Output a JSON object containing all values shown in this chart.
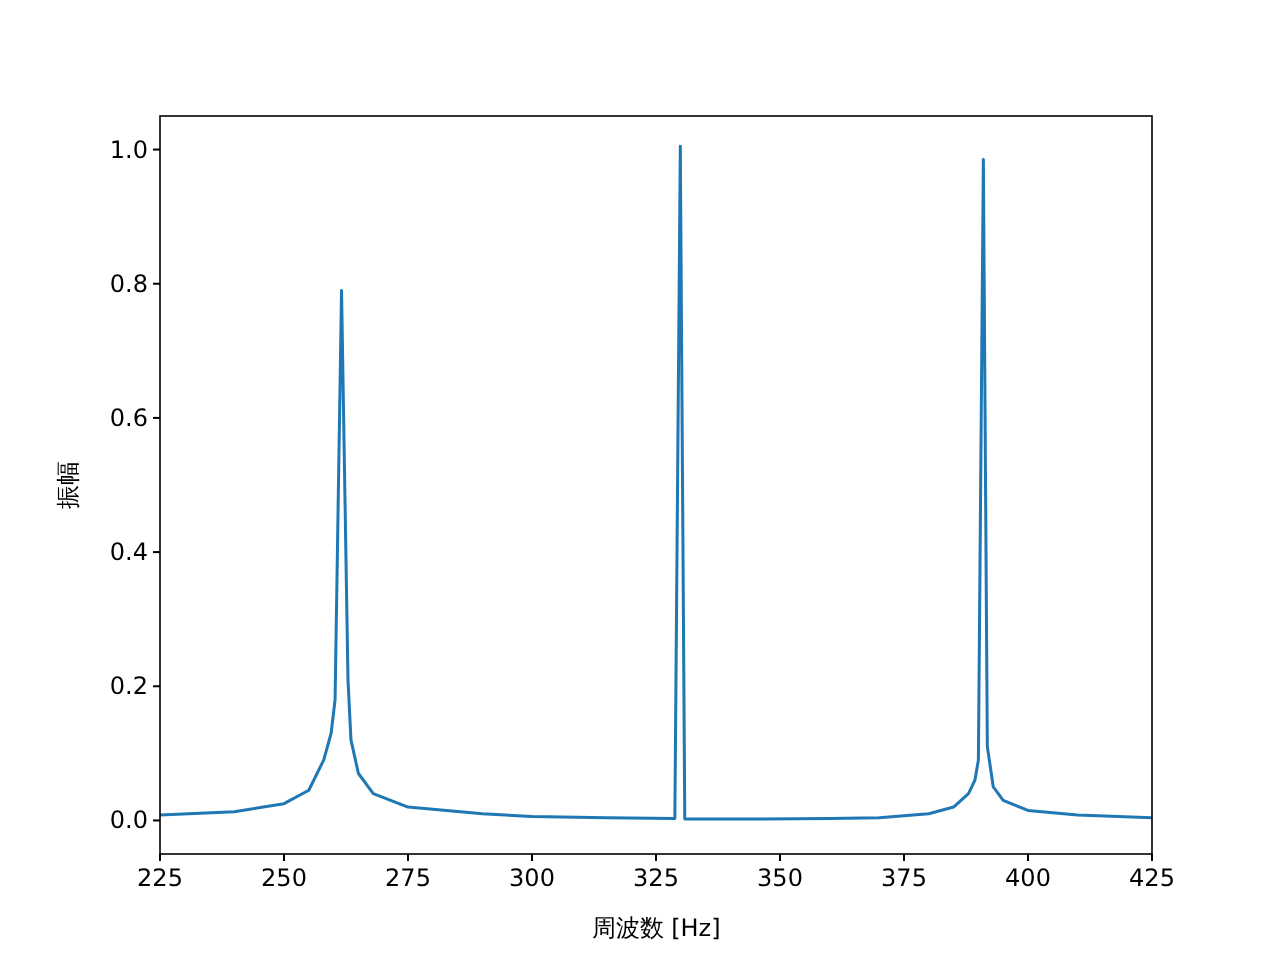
{
  "chart_data": {
    "type": "line",
    "xlabel": "周波数 [Hz]",
    "ylabel": "振幅",
    "xlim": [
      225,
      425
    ],
    "ylim": [
      -0.05,
      1.05
    ],
    "xticks": [
      225,
      250,
      275,
      300,
      325,
      350,
      375,
      400,
      425
    ],
    "yticks": [
      {
        "value": 0,
        "label": "0.0"
      },
      {
        "value": 0.2,
        "label": "0.2"
      },
      {
        "value": 0.4,
        "label": "0.4"
      },
      {
        "value": 0.6,
        "label": "0.6"
      },
      {
        "value": 0.8,
        "label": "0.8"
      },
      {
        "value": 1,
        "label": "1.0"
      }
    ],
    "series": [
      {
        "color": "#1f77b4",
        "x": [
          225,
          240,
          250,
          255,
          258,
          259.5,
          260.3,
          261.6,
          262.9,
          263.5,
          265,
          268,
          275,
          290,
          300,
          315,
          328.8,
          329.9,
          330.8,
          345,
          360,
          370,
          380,
          385,
          388,
          389.3,
          390,
          391,
          391.8,
          393,
          395,
          400,
          410,
          425
        ],
        "values": [
          0.008,
          0.013,
          0.025,
          0.045,
          0.09,
          0.13,
          0.18,
          0.79,
          0.21,
          0.12,
          0.07,
          0.04,
          0.02,
          0.01,
          0.006,
          0.004,
          0.003,
          1.005,
          0.002,
          0.002,
          0.003,
          0.004,
          0.01,
          0.02,
          0.04,
          0.06,
          0.09,
          0.985,
          0.11,
          0.05,
          0.03,
          0.015,
          0.008,
          0.004
        ]
      }
    ]
  }
}
